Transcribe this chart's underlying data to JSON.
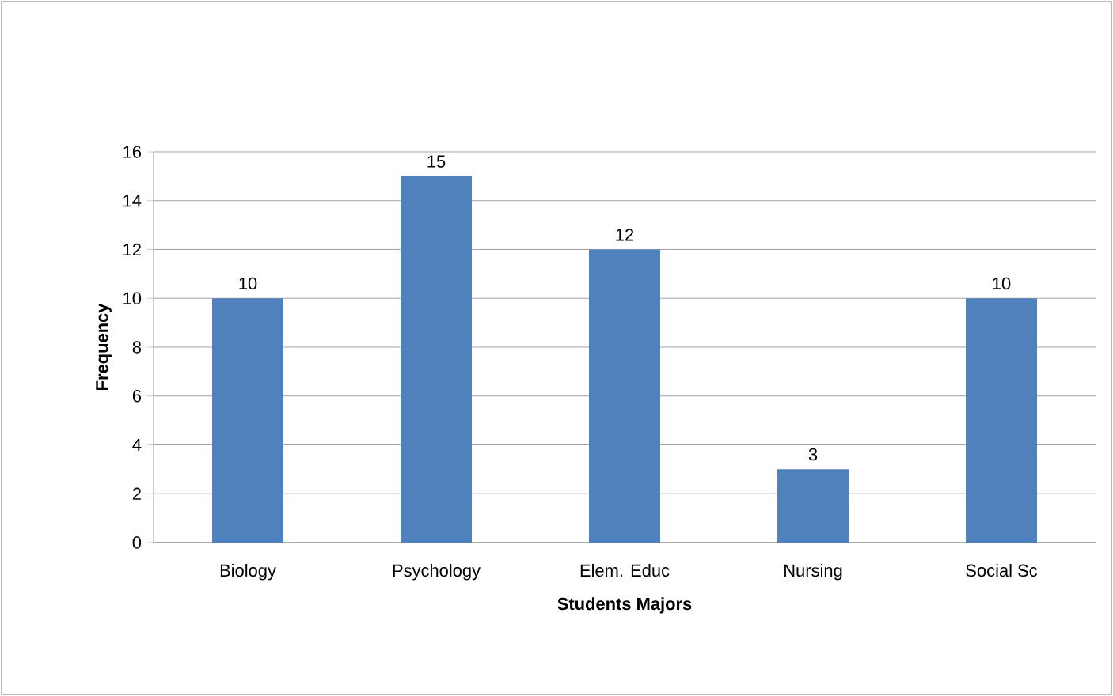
{
  "chart_data": {
    "type": "bar",
    "xlabel": "Students Majors",
    "ylabel": "Frequency",
    "categories": [
      "Biology",
      "Psychology",
      "Elem. Educ",
      "Nursing",
      "Social Sc"
    ],
    "values": [
      10,
      15,
      12,
      3,
      10
    ],
    "color": "#4f81bd",
    "ylim": [
      0,
      16
    ],
    "yticks": [
      0,
      2,
      4,
      6,
      8,
      10,
      12,
      14,
      16
    ],
    "grid": "y",
    "data_labels": true
  }
}
